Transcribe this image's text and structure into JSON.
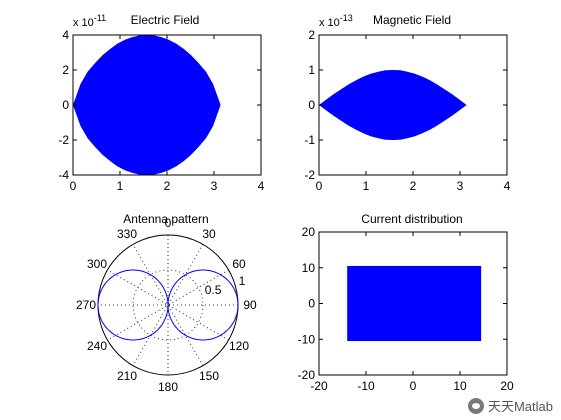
{
  "watermark": {
    "text": "天天Matlab",
    "icon": "wechat-icon"
  },
  "chart_data": [
    {
      "type": "area",
      "title": "Electric Field",
      "exponent_label": "x 10",
      "exponent": "-11",
      "xlim": [
        0,
        4
      ],
      "ylim": [
        -4,
        4
      ],
      "xticks": [
        0,
        1,
        2,
        3,
        4
      ],
      "yticks": [
        -4,
        -2,
        0,
        2,
        4
      ],
      "fill_color": "#0000ff",
      "x": [
        0,
        0.16,
        0.31,
        0.47,
        0.63,
        0.79,
        0.94,
        1.1,
        1.26,
        1.41,
        1.57,
        1.73,
        1.88,
        2.04,
        2.2,
        2.36,
        2.51,
        2.67,
        2.83,
        2.98,
        3.14
      ],
      "upper": [
        0,
        1.2,
        1.9,
        2.4,
        2.85,
        3.2,
        3.5,
        3.72,
        3.88,
        3.97,
        4.0,
        3.97,
        3.88,
        3.72,
        3.5,
        3.2,
        2.85,
        2.4,
        1.9,
        1.2,
        0
      ],
      "lower": [
        0,
        -1.2,
        -1.9,
        -2.4,
        -2.85,
        -3.2,
        -3.5,
        -3.72,
        -3.88,
        -3.97,
        -4.0,
        -3.97,
        -3.88,
        -3.72,
        -3.5,
        -3.2,
        -2.85,
        -2.4,
        -1.9,
        -1.2,
        0
      ]
    },
    {
      "type": "area",
      "title": "Magnetic Field",
      "exponent_label": "x 10",
      "exponent": "-13",
      "xlim": [
        0,
        4
      ],
      "ylim": [
        -2,
        2
      ],
      "xticks": [
        0,
        1,
        2,
        3,
        4
      ],
      "yticks": [
        -2,
        -1,
        0,
        1,
        2
      ],
      "fill_color": "#0000ff",
      "x": [
        0,
        0.16,
        0.31,
        0.47,
        0.63,
        0.79,
        0.94,
        1.1,
        1.26,
        1.41,
        1.57,
        1.73,
        1.88,
        2.04,
        2.2,
        2.36,
        2.51,
        2.67,
        2.83,
        2.98,
        3.14
      ],
      "upper": [
        0,
        0.16,
        0.31,
        0.45,
        0.59,
        0.71,
        0.81,
        0.89,
        0.95,
        0.99,
        1.0,
        0.99,
        0.95,
        0.89,
        0.81,
        0.71,
        0.59,
        0.45,
        0.31,
        0.16,
        0
      ],
      "lower": [
        0,
        -0.16,
        -0.31,
        -0.45,
        -0.59,
        -0.71,
        -0.81,
        -0.89,
        -0.95,
        -0.99,
        -1.0,
        -0.99,
        -0.95,
        -0.89,
        -0.81,
        -0.71,
        -0.59,
        -0.45,
        -0.31,
        -0.16,
        0
      ]
    },
    {
      "type": "polar",
      "title": "Antenna pattern",
      "rmax": 1,
      "rings": [
        0.5,
        1
      ],
      "ring_labels": [
        "0.5",
        "1"
      ],
      "angle_labels": [
        "0",
        "30",
        "60",
        "90",
        "120",
        "150",
        "180",
        "210",
        "240",
        "270",
        "300",
        "330"
      ],
      "line_color": "#0000ff",
      "pattern": "|sin(theta)|"
    },
    {
      "type": "area",
      "title": "Current distribution",
      "xlim": [
        -20,
        20
      ],
      "ylim": [
        -20,
        20
      ],
      "xticks": [
        -20,
        -10,
        0,
        10,
        20
      ],
      "yticks": [
        -20,
        -10,
        0,
        10,
        20
      ],
      "fill_color": "#0000ff",
      "rect": {
        "x0": -14,
        "x1": 14.5,
        "y0": -10.5,
        "y1": 10.5
      }
    }
  ]
}
